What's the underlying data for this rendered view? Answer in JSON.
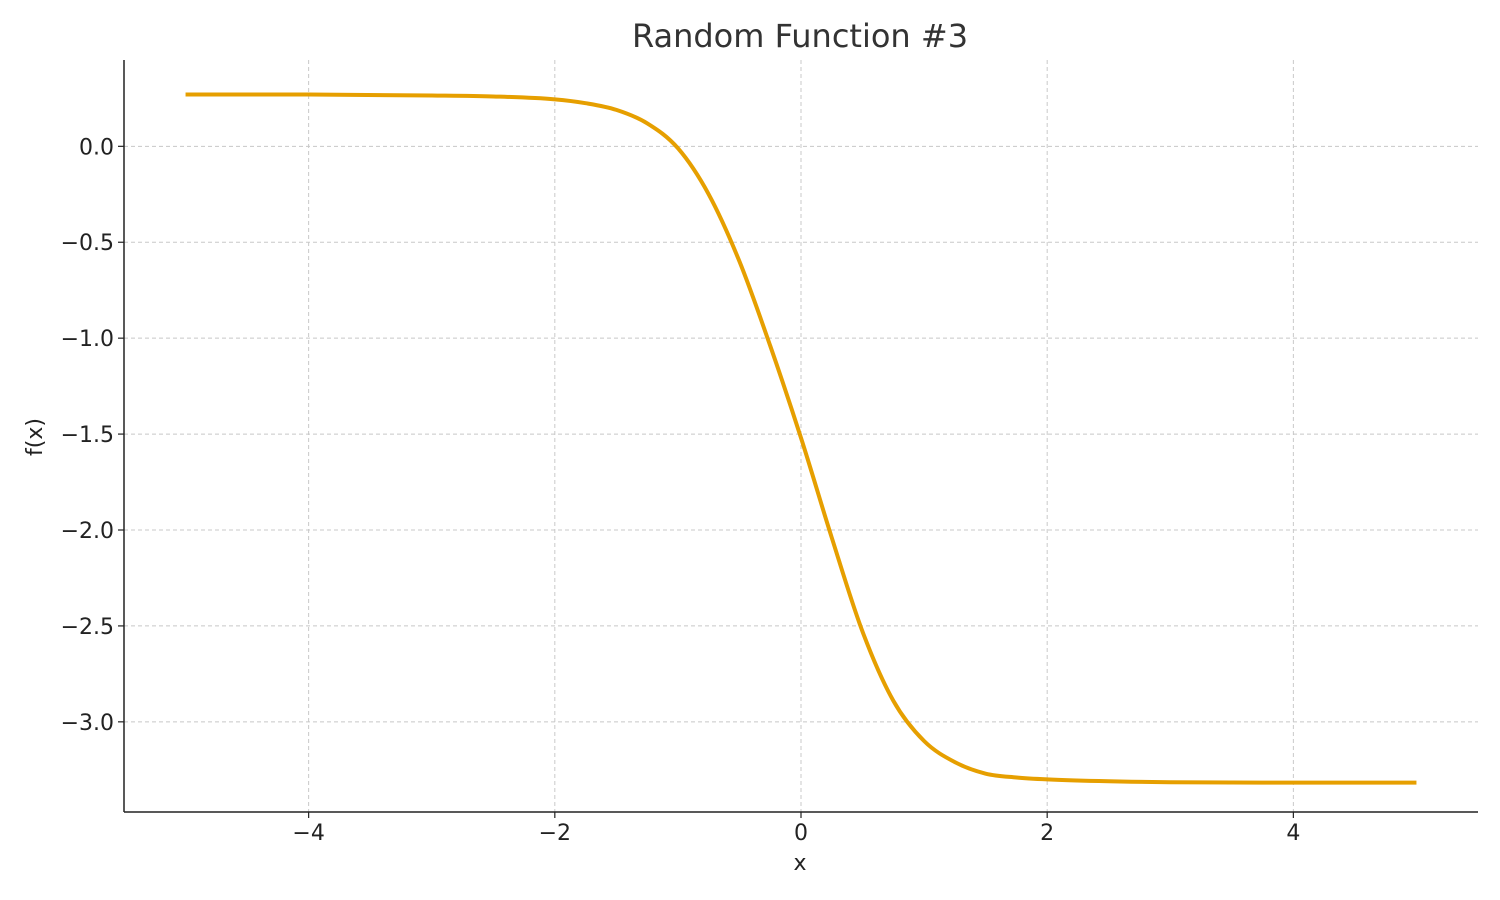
{
  "chart_data": {
    "type": "line",
    "title": "Random Function #3",
    "xlabel": "x",
    "ylabel": "f(x)",
    "xlim": [
      -5.5,
      5.5
    ],
    "ylim": [
      -3.47,
      0.45
    ],
    "xticks": [
      -4,
      -2,
      0,
      2,
      4
    ],
    "xtick_labels": [
      "−4",
      "−2",
      "0",
      "2",
      "4"
    ],
    "yticks": [
      0.0,
      -0.5,
      -1.0,
      -1.5,
      -2.0,
      -2.5,
      -3.0
    ],
    "ytick_labels": [
      "0.0",
      "−0.5",
      "−1.0",
      "−1.5",
      "−2.0",
      "−2.5",
      "−3.0"
    ],
    "grid": true,
    "series": [
      {
        "color": "#E69F00",
        "x": [
          -5.0,
          -4.0,
          -3.0,
          -2.5,
          -2.0,
          -1.75,
          -1.5,
          -1.25,
          -1.0,
          -0.75,
          -0.5,
          -0.25,
          0.0,
          0.25,
          0.5,
          0.75,
          1.0,
          1.25,
          1.5,
          1.75,
          2.0,
          2.5,
          3.0,
          4.0,
          5.0
        ],
        "y": [
          0.27,
          0.27,
          0.265,
          0.26,
          0.245,
          0.225,
          0.19,
          0.12,
          -0.01,
          -0.25,
          -0.6,
          -1.04,
          -1.52,
          -2.04,
          -2.53,
          -2.89,
          -3.1,
          -3.21,
          -3.27,
          -3.29,
          -3.3,
          -3.31,
          -3.315,
          -3.317,
          -3.317
        ]
      }
    ]
  }
}
